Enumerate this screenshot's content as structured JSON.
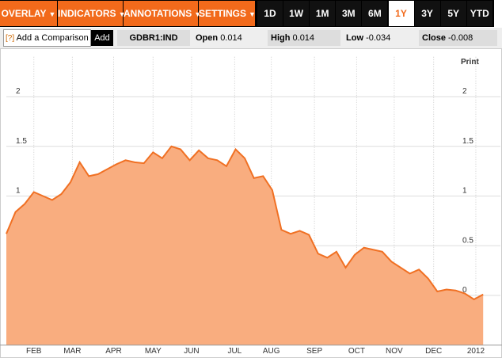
{
  "toolbar": {
    "menus": [
      "OVERLAY",
      "INDICATORS",
      "ANNOTATIONS",
      "SETTINGS"
    ],
    "menu_arrow": "▼",
    "ranges": [
      "1D",
      "1W",
      "1M",
      "3M",
      "6M",
      "1Y",
      "3Y",
      "5Y",
      "YTD"
    ],
    "selected_range": "1Y"
  },
  "quote_bar": {
    "help_icon": "[?]",
    "comparison_placeholder": "Add a Comparison",
    "add_button": "Add",
    "ticker": "GDBR1:IND",
    "open_label": "Open",
    "open": "0.014",
    "high_label": "High",
    "high": "0.014",
    "low_label": "Low",
    "low": "-0.034",
    "close_label": "Close",
    "close": "-0.008"
  },
  "print_link": "Print",
  "chart_data": {
    "type": "area",
    "x": [
      0,
      1,
      2,
      3,
      4,
      5,
      6,
      7,
      8,
      9,
      10,
      11,
      12,
      13,
      14,
      15,
      16,
      17,
      18,
      19,
      20,
      21,
      22,
      23,
      24,
      25,
      26,
      27,
      28,
      29,
      30,
      31,
      32,
      33,
      34,
      35,
      36,
      37,
      38,
      39,
      40,
      41,
      42,
      43,
      44,
      45,
      46,
      47,
      48,
      49,
      50,
      51,
      52
    ],
    "values": [
      0.62,
      0.84,
      0.92,
      1.04,
      1.0,
      0.96,
      1.02,
      1.14,
      1.34,
      1.2,
      1.22,
      1.27,
      1.32,
      1.36,
      1.34,
      1.33,
      1.44,
      1.38,
      1.5,
      1.47,
      1.36,
      1.46,
      1.38,
      1.36,
      1.3,
      1.47,
      1.38,
      1.18,
      1.2,
      1.06,
      0.66,
      0.62,
      0.65,
      0.61,
      0.42,
      0.38,
      0.44,
      0.28,
      0.41,
      0.48,
      0.46,
      0.44,
      0.34,
      0.28,
      0.22,
      0.26,
      0.17,
      0.04,
      0.06,
      0.05,
      0.02,
      -0.04,
      0.01
    ],
    "line_color": "#f07023",
    "fill_color": "#f9ad7f",
    "xlim": [
      0,
      52.5
    ],
    "xticks": [
      {
        "value": 3.0,
        "label": "FEB"
      },
      {
        "value": 7.2,
        "label": "MAR"
      },
      {
        "value": 11.7,
        "label": "APR"
      },
      {
        "value": 16.0,
        "label": "MAY"
      },
      {
        "value": 20.2,
        "label": "JUN"
      },
      {
        "value": 24.9,
        "label": "JUL"
      },
      {
        "value": 28.9,
        "label": "AUG"
      },
      {
        "value": 33.6,
        "label": "SEP"
      },
      {
        "value": 38.2,
        "label": "OCT"
      },
      {
        "value": 42.3,
        "label": "NOV"
      },
      {
        "value": 46.6,
        "label": "DEC"
      },
      {
        "value": 51.2,
        "label": "2012"
      }
    ],
    "ylim": [
      -0.5,
      2.4
    ],
    "yticks": [
      0,
      0.5,
      1,
      1.5,
      2
    ],
    "grid": true
  }
}
